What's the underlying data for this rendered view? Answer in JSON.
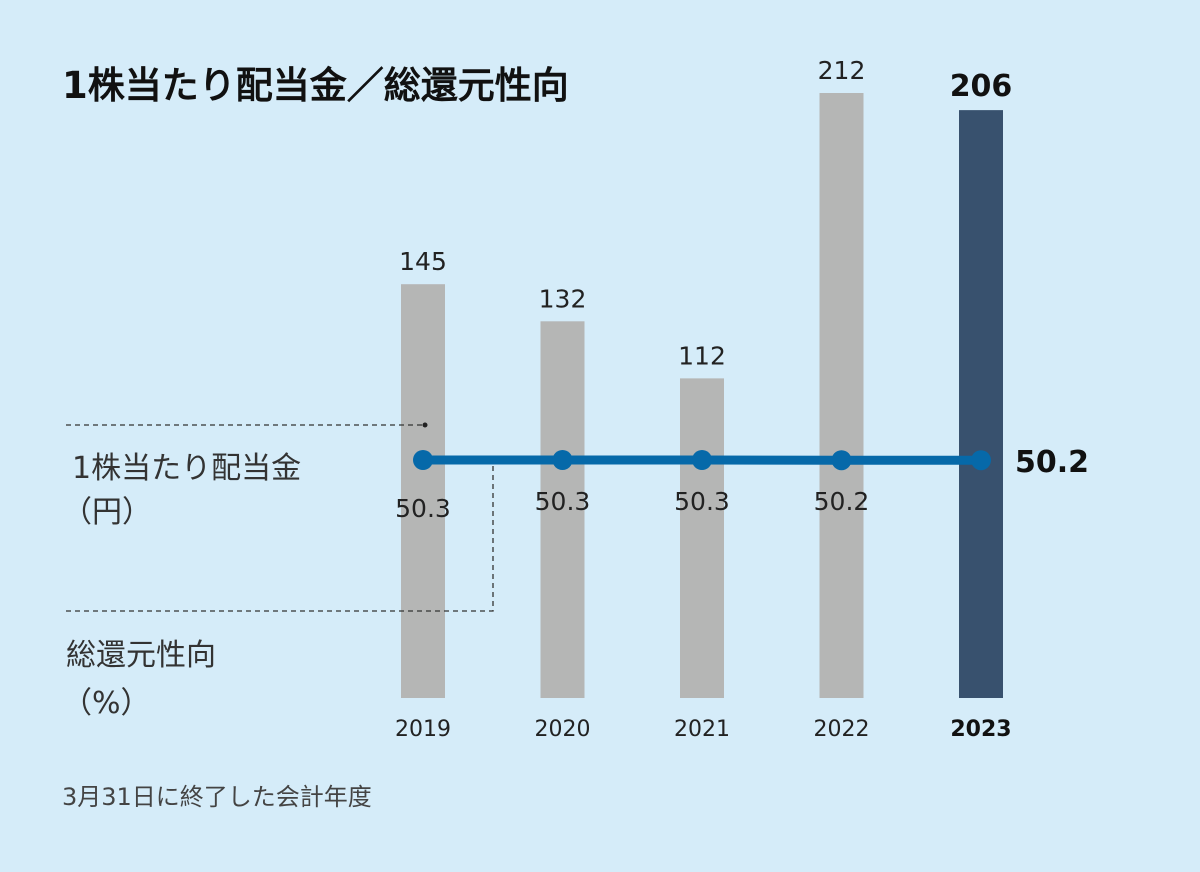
{
  "chart_data": {
    "type": "bar",
    "title": "1株当たり配当金／総還元性向",
    "categories": [
      "2019",
      "2020",
      "2021",
      "2022",
      "2023"
    ],
    "series": [
      {
        "name": "1株当たり配当金（円）",
        "kind": "bar",
        "values": [
          145,
          132,
          112,
          212,
          206
        ]
      },
      {
        "name": "総還元性向（%）",
        "kind": "line",
        "values": [
          50.3,
          50.3,
          50.3,
          50.2,
          50.2
        ]
      }
    ],
    "highlight_category": "2023",
    "bar_ylim": [
      0,
      212
    ],
    "colors": {
      "bar": "#b5b6b5",
      "bar_highlight": "#38516e",
      "line": "#0669a9",
      "background": "#d5ecf9"
    },
    "legend": {
      "dividend_label": "1株当たり配当金",
      "dividend_unit": "（円）",
      "payout_label": "総還元性向",
      "payout_unit": "（%）"
    },
    "footnote": "3月31日に終了した会計年度"
  }
}
